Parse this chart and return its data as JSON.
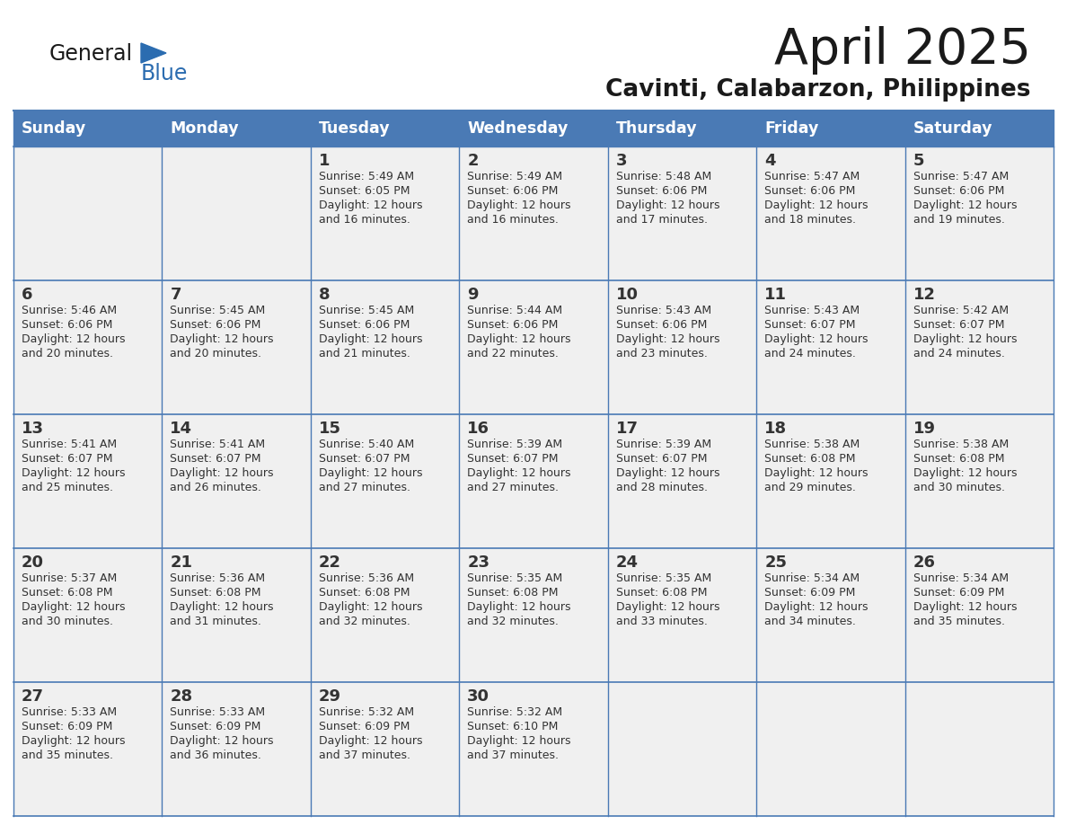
{
  "title": "April 2025",
  "subtitle": "Cavinti, Calabarzon, Philippines",
  "days_of_week": [
    "Sunday",
    "Monday",
    "Tuesday",
    "Wednesday",
    "Thursday",
    "Friday",
    "Saturday"
  ],
  "header_bg": "#4a7ab5",
  "header_text": "#ffffff",
  "cell_bg": "#f0f0f0",
  "cell_text": "#333333",
  "grid_line": "#4a7ab5",
  "title_color": "#1a1a1a",
  "subtitle_color": "#1a1a1a",
  "logo_general_color": "#1a1a1a",
  "logo_blue_color": "#2b6cb0",
  "weeks": [
    [
      {
        "day": "",
        "sunrise": "",
        "sunset": "",
        "daylight": ""
      },
      {
        "day": "",
        "sunrise": "",
        "sunset": "",
        "daylight": ""
      },
      {
        "day": "1",
        "sunrise": "5:49 AM",
        "sunset": "6:05 PM",
        "daylight": "12 hours and 16 minutes."
      },
      {
        "day": "2",
        "sunrise": "5:49 AM",
        "sunset": "6:06 PM",
        "daylight": "12 hours and 16 minutes."
      },
      {
        "day": "3",
        "sunrise": "5:48 AM",
        "sunset": "6:06 PM",
        "daylight": "12 hours and 17 minutes."
      },
      {
        "day": "4",
        "sunrise": "5:47 AM",
        "sunset": "6:06 PM",
        "daylight": "12 hours and 18 minutes."
      },
      {
        "day": "5",
        "sunrise": "5:47 AM",
        "sunset": "6:06 PM",
        "daylight": "12 hours and 19 minutes."
      }
    ],
    [
      {
        "day": "6",
        "sunrise": "5:46 AM",
        "sunset": "6:06 PM",
        "daylight": "12 hours and 20 minutes."
      },
      {
        "day": "7",
        "sunrise": "5:45 AM",
        "sunset": "6:06 PM",
        "daylight": "12 hours and 20 minutes."
      },
      {
        "day": "8",
        "sunrise": "5:45 AM",
        "sunset": "6:06 PM",
        "daylight": "12 hours and 21 minutes."
      },
      {
        "day": "9",
        "sunrise": "5:44 AM",
        "sunset": "6:06 PM",
        "daylight": "12 hours and 22 minutes."
      },
      {
        "day": "10",
        "sunrise": "5:43 AM",
        "sunset": "6:06 PM",
        "daylight": "12 hours and 23 minutes."
      },
      {
        "day": "11",
        "sunrise": "5:43 AM",
        "sunset": "6:07 PM",
        "daylight": "12 hours and 24 minutes."
      },
      {
        "day": "12",
        "sunrise": "5:42 AM",
        "sunset": "6:07 PM",
        "daylight": "12 hours and 24 minutes."
      }
    ],
    [
      {
        "day": "13",
        "sunrise": "5:41 AM",
        "sunset": "6:07 PM",
        "daylight": "12 hours and 25 minutes."
      },
      {
        "day": "14",
        "sunrise": "5:41 AM",
        "sunset": "6:07 PM",
        "daylight": "12 hours and 26 minutes."
      },
      {
        "day": "15",
        "sunrise": "5:40 AM",
        "sunset": "6:07 PM",
        "daylight": "12 hours and 27 minutes."
      },
      {
        "day": "16",
        "sunrise": "5:39 AM",
        "sunset": "6:07 PM",
        "daylight": "12 hours and 27 minutes."
      },
      {
        "day": "17",
        "sunrise": "5:39 AM",
        "sunset": "6:07 PM",
        "daylight": "12 hours and 28 minutes."
      },
      {
        "day": "18",
        "sunrise": "5:38 AM",
        "sunset": "6:08 PM",
        "daylight": "12 hours and 29 minutes."
      },
      {
        "day": "19",
        "sunrise": "5:38 AM",
        "sunset": "6:08 PM",
        "daylight": "12 hours and 30 minutes."
      }
    ],
    [
      {
        "day": "20",
        "sunrise": "5:37 AM",
        "sunset": "6:08 PM",
        "daylight": "12 hours and 30 minutes."
      },
      {
        "day": "21",
        "sunrise": "5:36 AM",
        "sunset": "6:08 PM",
        "daylight": "12 hours and 31 minutes."
      },
      {
        "day": "22",
        "sunrise": "5:36 AM",
        "sunset": "6:08 PM",
        "daylight": "12 hours and 32 minutes."
      },
      {
        "day": "23",
        "sunrise": "5:35 AM",
        "sunset": "6:08 PM",
        "daylight": "12 hours and 32 minutes."
      },
      {
        "day": "24",
        "sunrise": "5:35 AM",
        "sunset": "6:08 PM",
        "daylight": "12 hours and 33 minutes."
      },
      {
        "day": "25",
        "sunrise": "5:34 AM",
        "sunset": "6:09 PM",
        "daylight": "12 hours and 34 minutes."
      },
      {
        "day": "26",
        "sunrise": "5:34 AM",
        "sunset": "6:09 PM",
        "daylight": "12 hours and 35 minutes."
      }
    ],
    [
      {
        "day": "27",
        "sunrise": "5:33 AM",
        "sunset": "6:09 PM",
        "daylight": "12 hours and 35 minutes."
      },
      {
        "day": "28",
        "sunrise": "5:33 AM",
        "sunset": "6:09 PM",
        "daylight": "12 hours and 36 minutes."
      },
      {
        "day": "29",
        "sunrise": "5:32 AM",
        "sunset": "6:09 PM",
        "daylight": "12 hours and 37 minutes."
      },
      {
        "day": "30",
        "sunrise": "5:32 AM",
        "sunset": "6:10 PM",
        "daylight": "12 hours and 37 minutes."
      },
      {
        "day": "",
        "sunrise": "",
        "sunset": "",
        "daylight": ""
      },
      {
        "day": "",
        "sunrise": "",
        "sunset": "",
        "daylight": ""
      },
      {
        "day": "",
        "sunrise": "",
        "sunset": "",
        "daylight": ""
      }
    ]
  ]
}
